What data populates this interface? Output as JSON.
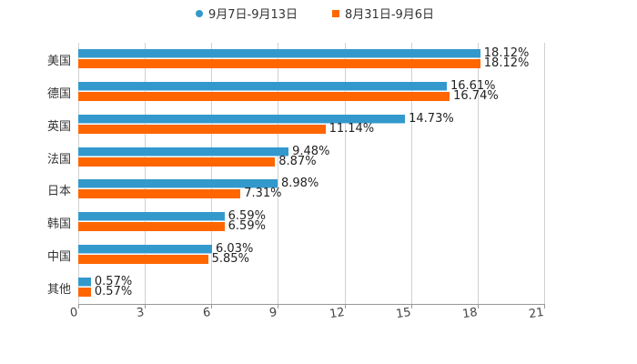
{
  "chart_data": {
    "type": "bar",
    "orientation": "horizontal",
    "title": "",
    "xlabel": "",
    "ylabel": "",
    "xlim": [
      0,
      21
    ],
    "x_ticks": [
      "0",
      "3",
      "6",
      "9",
      "12",
      "15",
      "18",
      "21"
    ],
    "grid": true,
    "legend_position": "top",
    "categories": [
      "美国",
      "德国",
      "英国",
      "法国",
      "日本",
      "韩国",
      "中国",
      "其他"
    ],
    "series": [
      {
        "name": "9月7日-9月13日",
        "color": "#3399cc",
        "values": [
          18.12,
          16.61,
          14.73,
          9.48,
          8.98,
          6.59,
          6.03,
          0.57
        ],
        "labels": [
          "18.12%",
          "16.61%",
          "14.73%",
          "9.48%",
          "8.98%",
          "6.59%",
          "6.03%",
          "0.57%"
        ]
      },
      {
        "name": "8月31日-9月6日",
        "color": "#ff6600",
        "values": [
          18.12,
          16.74,
          11.14,
          8.87,
          7.31,
          6.59,
          5.85,
          0.57
        ],
        "labels": [
          "18.12%",
          "16.74%",
          "11.14%",
          "8.87%",
          "7.31%",
          "6.59%",
          "5.85%",
          "0.57%"
        ]
      }
    ]
  }
}
